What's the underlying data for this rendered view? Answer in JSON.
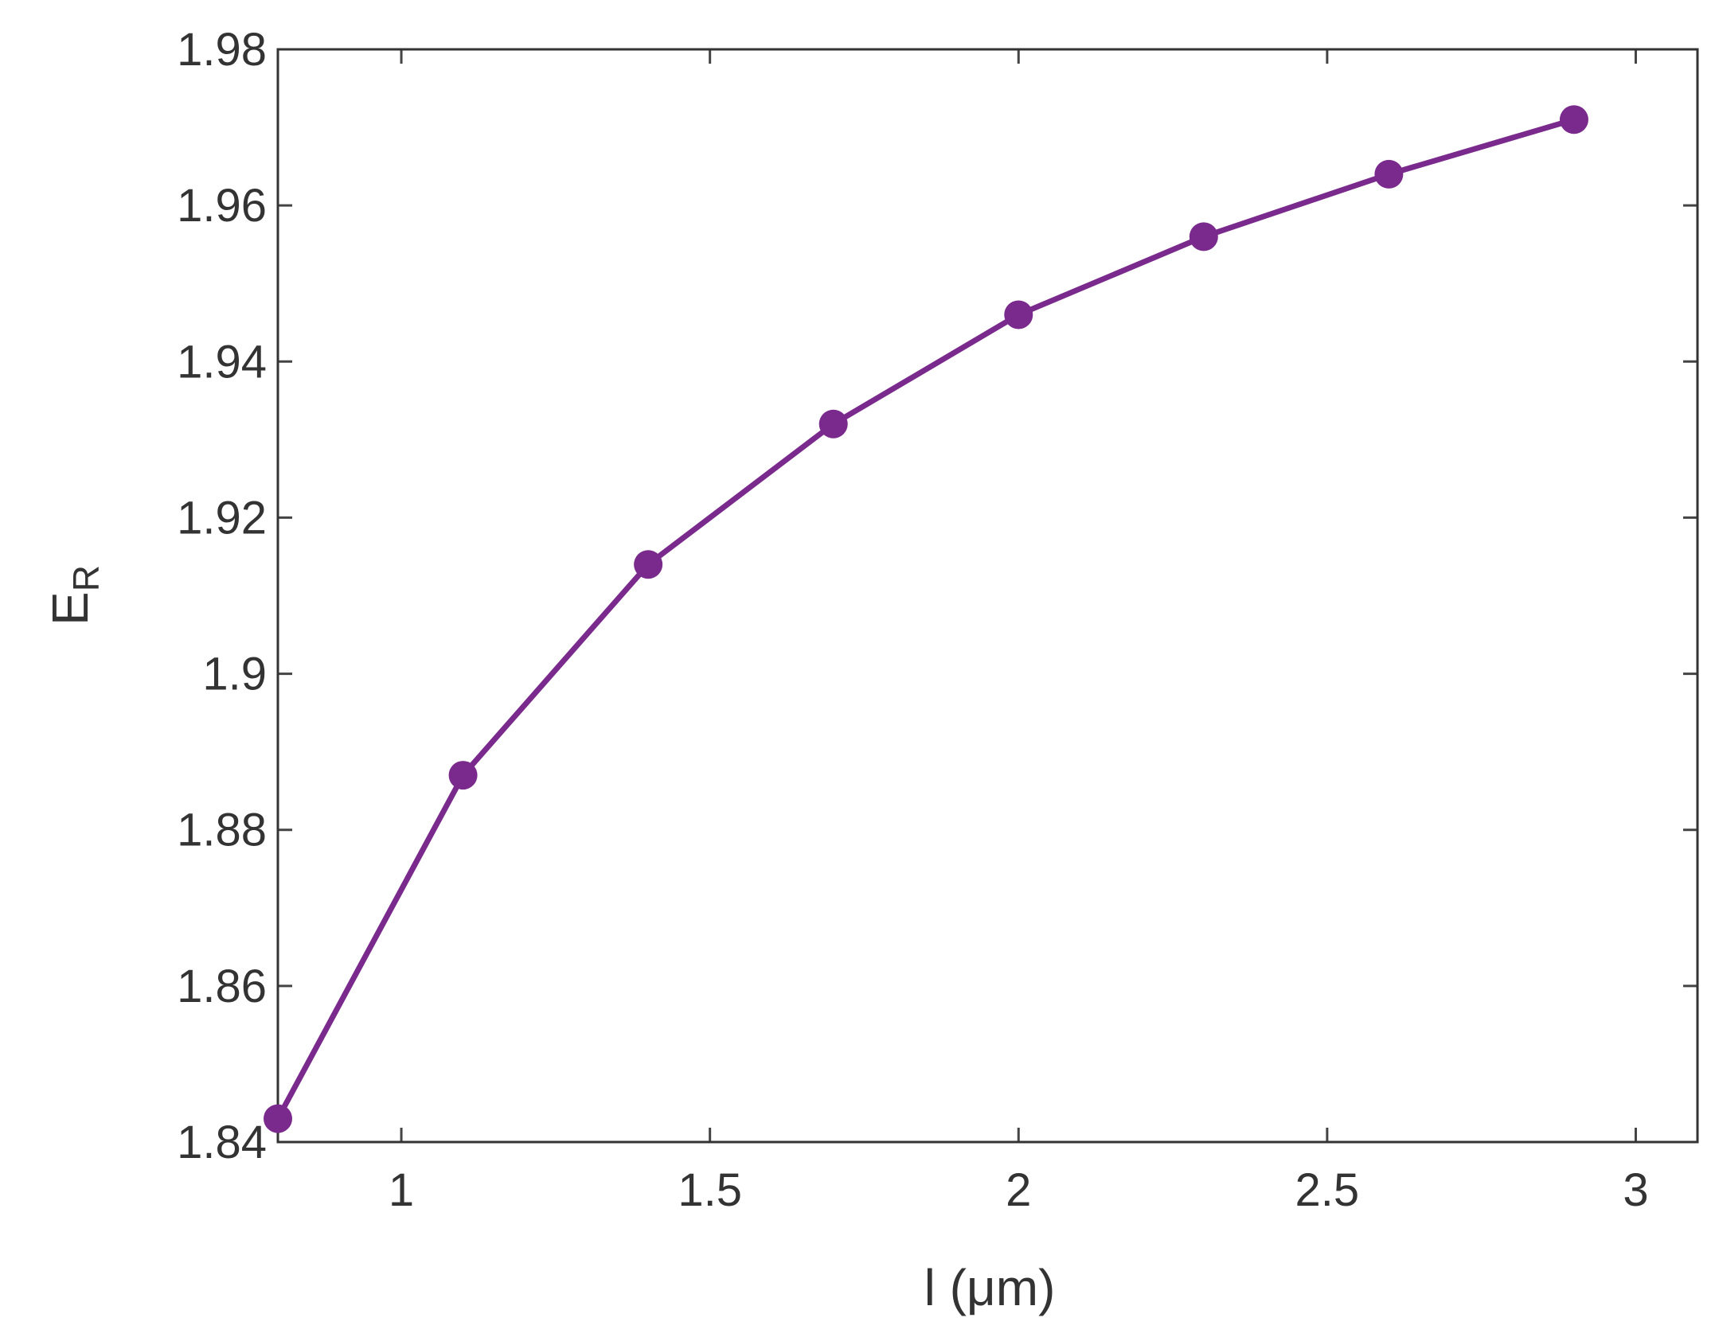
{
  "chart_data": {
    "type": "line",
    "xlabel": "l (μm)",
    "ylabel": "E",
    "ylabel_sub": "R",
    "x": [
      0.8,
      1.1,
      1.4,
      1.7,
      2.0,
      2.3,
      2.6,
      2.9
    ],
    "series": [
      {
        "color": "#7a2a8c",
        "values": [
          1.843,
          1.887,
          1.914,
          1.932,
          1.946,
          1.956,
          1.964,
          1.971
        ]
      }
    ],
    "xlim": [
      0.8,
      3.1
    ],
    "ylim": [
      1.84,
      1.98
    ],
    "xticks": [
      1,
      1.5,
      2,
      2.5,
      3
    ],
    "yticks": [
      1.84,
      1.86,
      1.88,
      1.9,
      1.92,
      1.94,
      1.96,
      1.98
    ],
    "grid": false,
    "markers": true
  }
}
